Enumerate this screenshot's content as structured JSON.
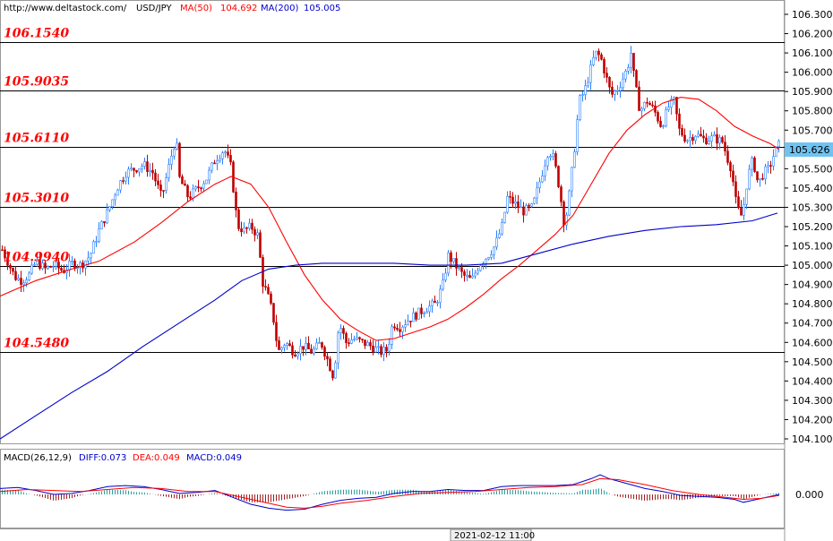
{
  "header": {
    "url": "http://www.deltastock.com/",
    "symbol": "USD/JPY",
    "ma50_label": "MA(50)",
    "ma50_value": "104.692",
    "ma200_label": "MA(200)",
    "ma200_value": "105.005"
  },
  "macd_header": {
    "title": "MACD(26,12,9)",
    "diff": "DIFF:0.073",
    "dea": "DEA:0.049",
    "macd": "MACD:0.049"
  },
  "colors": {
    "bull": "#2a80ff",
    "bear": "#c00000",
    "ma50": "#ff0000",
    "ma200": "#0000cc",
    "level_text": "#ff0000",
    "price_tag": "#6fc3f2"
  },
  "chart_data": {
    "type": "candlestick",
    "y_axis": {
      "ylim": [
        104.05,
        106.35
      ],
      "ticks": [
        "106.300",
        "106.200",
        "106.100",
        "106.000",
        "105.900",
        "105.800",
        "105.700",
        "105.600",
        "105.500",
        "105.400",
        "105.300",
        "105.200",
        "105.100",
        "105.000",
        "104.900",
        "104.800",
        "104.700",
        "104.600",
        "104.500",
        "104.400",
        "104.300",
        "104.200",
        "104.100"
      ]
    },
    "current_price": "105.626",
    "levels": [
      {
        "label": "106.1540",
        "value": 106.154
      },
      {
        "label": "105.9035",
        "value": 105.9035
      },
      {
        "label": "105.6110",
        "value": 105.611
      },
      {
        "label": "105.3010",
        "value": 105.301
      },
      {
        "label": "104.9940",
        "value": 104.994
      },
      {
        "label": "104.5480",
        "value": 104.548
      }
    ],
    "price_path": [
      [
        0,
        105.1
      ],
      [
        8,
        105.02
      ],
      [
        16,
        104.94
      ],
      [
        24,
        104.92
      ],
      [
        32,
        104.95
      ],
      [
        40,
        105.02
      ],
      [
        50,
        104.98
      ],
      [
        60,
        105.0
      ],
      [
        70,
        104.97
      ],
      [
        80,
        105.01
      ],
      [
        90,
        105.0
      ],
      [
        100,
        105.05
      ],
      [
        110,
        105.18
      ],
      [
        120,
        105.28
      ],
      [
        130,
        105.4
      ],
      [
        140,
        105.48
      ],
      [
        150,
        105.5
      ],
      [
        160,
        105.52
      ],
      [
        170,
        105.48
      ],
      [
        180,
        105.35
      ],
      [
        190,
        105.55
      ],
      [
        196,
        105.66
      ],
      [
        200,
        105.45
      ],
      [
        210,
        105.35
      ],
      [
        220,
        105.4
      ],
      [
        230,
        105.45
      ],
      [
        240,
        105.55
      ],
      [
        250,
        105.6
      ],
      [
        258,
        105.5
      ],
      [
        262,
        105.3
      ],
      [
        266,
        105.2
      ],
      [
        272,
        105.18
      ],
      [
        280,
        105.2
      ],
      [
        288,
        105.15
      ],
      [
        292,
        104.92
      ],
      [
        298,
        104.85
      ],
      [
        304,
        104.75
      ],
      [
        310,
        104.55
      ],
      [
        318,
        104.6
      ],
      [
        328,
        104.55
      ],
      [
        338,
        104.58
      ],
      [
        348,
        104.55
      ],
      [
        358,
        104.6
      ],
      [
        366,
        104.5
      ],
      [
        372,
        104.42
      ],
      [
        378,
        104.7
      ],
      [
        386,
        104.6
      ],
      [
        394,
        104.62
      ],
      [
        404,
        104.6
      ],
      [
        414,
        104.58
      ],
      [
        424,
        104.55
      ],
      [
        432,
        104.56
      ],
      [
        438,
        104.7
      ],
      [
        446,
        104.68
      ],
      [
        456,
        104.72
      ],
      [
        466,
        104.75
      ],
      [
        476,
        104.78
      ],
      [
        486,
        104.8
      ],
      [
        494,
        104.9
      ],
      [
        500,
        105.05
      ],
      [
        508,
        105.0
      ],
      [
        516,
        104.95
      ],
      [
        526,
        104.92
      ],
      [
        534,
        105.0
      ],
      [
        544,
        105.05
      ],
      [
        552,
        105.1
      ],
      [
        560,
        105.2
      ],
      [
        566,
        105.35
      ],
      [
        574,
        105.32
      ],
      [
        584,
        105.28
      ],
      [
        594,
        105.3
      ],
      [
        600,
        105.4
      ],
      [
        606,
        105.5
      ],
      [
        612,
        105.6
      ],
      [
        618,
        105.55
      ],
      [
        624,
        105.4
      ],
      [
        630,
        105.2
      ],
      [
        636,
        105.4
      ],
      [
        642,
        105.65
      ],
      [
        646,
        105.85
      ],
      [
        652,
        105.9
      ],
      [
        658,
        106.0
      ],
      [
        664,
        106.1
      ],
      [
        670,
        106.08
      ],
      [
        676,
        105.98
      ],
      [
        682,
        105.88
      ],
      [
        690,
        105.92
      ],
      [
        700,
        106.02
      ],
      [
        704,
        106.1
      ],
      [
        708,
        105.95
      ],
      [
        714,
        105.8
      ],
      [
        722,
        105.85
      ],
      [
        730,
        105.8
      ],
      [
        738,
        105.72
      ],
      [
        746,
        105.82
      ],
      [
        752,
        105.85
      ],
      [
        758,
        105.7
      ],
      [
        766,
        105.65
      ],
      [
        776,
        105.68
      ],
      [
        786,
        105.65
      ],
      [
        796,
        105.66
      ],
      [
        806,
        105.64
      ],
      [
        812,
        105.55
      ],
      [
        816,
        105.5
      ],
      [
        822,
        105.3
      ],
      [
        828,
        105.25
      ],
      [
        834,
        105.45
      ],
      [
        840,
        105.55
      ],
      [
        846,
        105.42
      ],
      [
        852,
        105.48
      ],
      [
        858,
        105.5
      ],
      [
        864,
        105.58
      ],
      [
        870,
        105.63
      ]
    ],
    "ma50_path": [
      [
        0,
        104.84
      ],
      [
        40,
        104.92
      ],
      [
        80,
        104.98
      ],
      [
        110,
        105.02
      ],
      [
        150,
        105.12
      ],
      [
        180,
        105.22
      ],
      [
        210,
        105.33
      ],
      [
        240,
        105.42
      ],
      [
        258,
        105.46
      ],
      [
        280,
        105.42
      ],
      [
        300,
        105.3
      ],
      [
        320,
        105.12
      ],
      [
        340,
        104.95
      ],
      [
        360,
        104.82
      ],
      [
        380,
        104.72
      ],
      [
        400,
        104.66
      ],
      [
        420,
        104.61
      ],
      [
        440,
        104.62
      ],
      [
        460,
        104.65
      ],
      [
        480,
        104.68
      ],
      [
        500,
        104.72
      ],
      [
        520,
        104.78
      ],
      [
        540,
        104.85
      ],
      [
        560,
        104.93
      ],
      [
        580,
        105.0
      ],
      [
        600,
        105.08
      ],
      [
        620,
        105.16
      ],
      [
        640,
        105.26
      ],
      [
        660,
        105.42
      ],
      [
        680,
        105.58
      ],
      [
        700,
        105.7
      ],
      [
        720,
        105.78
      ],
      [
        740,
        105.84
      ],
      [
        760,
        105.87
      ],
      [
        780,
        105.86
      ],
      [
        800,
        105.8
      ],
      [
        820,
        105.72
      ],
      [
        840,
        105.67
      ],
      [
        860,
        105.63
      ],
      [
        870,
        105.6
      ]
    ],
    "ma200_path": [
      [
        0,
        104.1
      ],
      [
        40,
        104.22
      ],
      [
        80,
        104.34
      ],
      [
        120,
        104.45
      ],
      [
        160,
        104.58
      ],
      [
        200,
        104.7
      ],
      [
        240,
        104.82
      ],
      [
        270,
        104.92
      ],
      [
        300,
        104.98
      ],
      [
        330,
        105.0
      ],
      [
        360,
        105.01
      ],
      [
        400,
        105.01
      ],
      [
        440,
        105.01
      ],
      [
        480,
        105.0
      ],
      [
        520,
        105.0
      ],
      [
        560,
        105.01
      ],
      [
        600,
        105.06
      ],
      [
        640,
        105.11
      ],
      [
        680,
        105.15
      ],
      [
        720,
        105.18
      ],
      [
        760,
        105.2
      ],
      [
        800,
        105.21
      ],
      [
        840,
        105.23
      ],
      [
        868,
        105.27
      ]
    ]
  },
  "macd_panel": {
    "zero_label": "0.000",
    "diff_path": [
      [
        0,
        0.6
      ],
      [
        20,
        0.7
      ],
      [
        40,
        0.4
      ],
      [
        60,
        0.0
      ],
      [
        80,
        0.1
      ],
      [
        100,
        0.4
      ],
      [
        120,
        0.8
      ],
      [
        140,
        0.9
      ],
      [
        160,
        0.8
      ],
      [
        180,
        0.5
      ],
      [
        200,
        0.1
      ],
      [
        220,
        0.2
      ],
      [
        240,
        0.4
      ],
      [
        260,
        -0.3
      ],
      [
        280,
        -1.0
      ],
      [
        300,
        -1.4
      ],
      [
        320,
        -1.6
      ],
      [
        340,
        -1.5
      ],
      [
        360,
        -1.0
      ],
      [
        380,
        -0.6
      ],
      [
        400,
        -0.4
      ],
      [
        420,
        -0.3
      ],
      [
        440,
        0.1
      ],
      [
        460,
        0.3
      ],
      [
        480,
        0.3
      ],
      [
        500,
        0.5
      ],
      [
        520,
        0.4
      ],
      [
        540,
        0.4
      ],
      [
        560,
        0.8
      ],
      [
        580,
        0.9
      ],
      [
        600,
        0.9
      ],
      [
        620,
        0.9
      ],
      [
        640,
        1.0
      ],
      [
        660,
        1.6
      ],
      [
        670,
        2.0
      ],
      [
        680,
        1.6
      ],
      [
        700,
        1.1
      ],
      [
        720,
        0.6
      ],
      [
        740,
        0.3
      ],
      [
        760,
        -0.1
      ],
      [
        780,
        -0.2
      ],
      [
        800,
        -0.3
      ],
      [
        820,
        -0.5
      ],
      [
        830,
        -0.8
      ],
      [
        840,
        -0.6
      ],
      [
        860,
        -0.2
      ],
      [
        870,
        0.0
      ]
    ],
    "dea_path": [
      [
        0,
        0.3
      ],
      [
        30,
        0.5
      ],
      [
        60,
        0.4
      ],
      [
        90,
        0.3
      ],
      [
        120,
        0.5
      ],
      [
        150,
        0.7
      ],
      [
        180,
        0.6
      ],
      [
        210,
        0.3
      ],
      [
        240,
        0.3
      ],
      [
        270,
        -0.3
      ],
      [
        300,
        -0.9
      ],
      [
        320,
        -1.3
      ],
      [
        340,
        -1.4
      ],
      [
        360,
        -1.2
      ],
      [
        380,
        -0.9
      ],
      [
        410,
        -0.6
      ],
      [
        440,
        -0.2
      ],
      [
        470,
        0.1
      ],
      [
        500,
        0.2
      ],
      [
        530,
        0.3
      ],
      [
        560,
        0.5
      ],
      [
        590,
        0.7
      ],
      [
        620,
        0.8
      ],
      [
        650,
        1.0
      ],
      [
        670,
        1.6
      ],
      [
        690,
        1.5
      ],
      [
        720,
        1.0
      ],
      [
        750,
        0.4
      ],
      [
        780,
        0.0
      ],
      [
        810,
        -0.3
      ],
      [
        830,
        -0.5
      ],
      [
        850,
        -0.4
      ],
      [
        870,
        -0.1
      ]
    ]
  },
  "time_axis": {
    "label": "2021-02-12 11:00"
  }
}
